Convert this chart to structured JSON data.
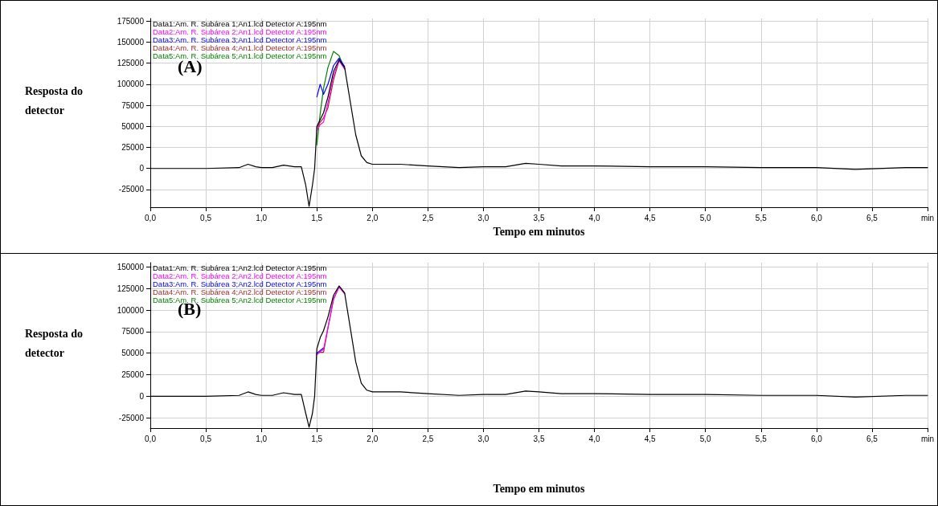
{
  "chart_data": [
    {
      "type": "line",
      "title": "(A)",
      "xlabel": "Tempo em minutos",
      "ylabel": "Resposta do detector",
      "legend": "top left",
      "grid": true,
      "marker": "none",
      "line_style": "solid",
      "x": [
        0,
        0.5,
        0.8,
        0.88,
        0.95,
        1.0,
        1.1,
        1.2,
        1.3,
        1.36,
        1.4,
        1.43,
        1.46,
        1.48,
        1.5,
        1.53,
        1.56,
        1.6,
        1.65,
        1.7,
        1.75,
        1.8,
        1.85,
        1.9,
        1.95,
        2.0,
        2.25,
        2.5,
        2.78,
        3.0,
        3.2,
        3.38,
        3.5,
        3.7,
        4.0,
        4.5,
        5.0,
        5.5,
        6.0,
        6.35,
        6.8,
        7.0
      ],
      "xlim": [
        0,
        7
      ],
      "xticks": [
        {
          "value": 0,
          "label": "0,0"
        },
        {
          "value": 0.5,
          "label": "0,5"
        },
        {
          "value": 1,
          "label": "1,0"
        },
        {
          "value": 1.5,
          "label": "1,5"
        },
        {
          "value": 2,
          "label": "2,0"
        },
        {
          "value": 2.5,
          "label": "2,5"
        },
        {
          "value": 3,
          "label": "3,0"
        },
        {
          "value": 3.5,
          "label": "3,5"
        },
        {
          "value": 4,
          "label": "4,0"
        },
        {
          "value": 4.5,
          "label": "4,5"
        },
        {
          "value": 5,
          "label": "5,0"
        },
        {
          "value": 5.5,
          "label": "5,5"
        },
        {
          "value": 6,
          "label": "6,0"
        },
        {
          "value": 6.5,
          "label": "6,5"
        },
        {
          "value": 7,
          "label": "min"
        }
      ],
      "ylim": [
        -46000,
        178000
      ],
      "yticks": [
        -25000,
        0,
        25000,
        50000,
        75000,
        100000,
        125000,
        150000,
        175000
      ],
      "series": [
        {
          "name": "Data1:Am. R. Subárea 1;An1.lcd Detector A:195nm",
          "color": "#000000",
          "values": [
            0,
            0,
            1000,
            5000,
            2000,
            1000,
            1000,
            4000,
            2000,
            2000,
            -20000,
            -45000,
            -20000,
            0,
            50000,
            58000,
            66000,
            85000,
            115000,
            129000,
            120000,
            80000,
            40000,
            15000,
            7000,
            5000,
            5000,
            3000,
            1000,
            2000,
            2000,
            6000,
            5000,
            3000,
            3000,
            2000,
            2000,
            1000,
            1000,
            -1000,
            1000,
            1000
          ]
        },
        {
          "name": "Data2:Am. R. Subárea 2;An1.lcd Detector A:195nm",
          "color": "#ff00ff",
          "values": [
            null,
            null,
            null,
            null,
            null,
            null,
            null,
            null,
            null,
            null,
            null,
            null,
            null,
            null,
            45000,
            52000,
            55000,
            78000,
            110000,
            128000,
            118000,
            null,
            null,
            null,
            null,
            null,
            null,
            null,
            null,
            null,
            null,
            null,
            null,
            null,
            null,
            null,
            null,
            null,
            null,
            null,
            null,
            null
          ]
        },
        {
          "name": "Data3:Am. R. Subárea 3;An1.lcd Detector A:195nm",
          "color": "#0000ff",
          "values": [
            null,
            null,
            null,
            null,
            null,
            null,
            null,
            null,
            null,
            null,
            null,
            null,
            null,
            null,
            85000,
            100000,
            88000,
            100000,
            122000,
            131000,
            121000,
            null,
            null,
            null,
            null,
            null,
            null,
            null,
            null,
            null,
            null,
            null,
            null,
            null,
            null,
            null,
            null,
            null,
            null,
            null,
            null,
            null
          ]
        },
        {
          "name": "Data4:Am. R. Subárea 4;An1.lcd Detector A:195nm",
          "color": "#a52a2a",
          "values": [
            null,
            null,
            null,
            null,
            null,
            null,
            null,
            null,
            null,
            null,
            null,
            null,
            null,
            null,
            48000,
            55000,
            60000,
            72000,
            105000,
            128000,
            119000,
            null,
            null,
            null,
            null,
            null,
            null,
            null,
            null,
            null,
            null,
            null,
            null,
            null,
            null,
            null,
            null,
            null,
            null,
            null,
            null,
            null
          ]
        },
        {
          "name": "Data5:Am. R. Subárea 5;An1.lcd Detector A:195nm",
          "color": "#008000",
          "values": [
            null,
            null,
            null,
            null,
            null,
            null,
            null,
            null,
            null,
            null,
            null,
            null,
            null,
            null,
            28000,
            65000,
            95000,
            120000,
            139000,
            134000,
            118000,
            null,
            null,
            null,
            null,
            null,
            null,
            null,
            null,
            null,
            null,
            null,
            null,
            null,
            null,
            null,
            null,
            null,
            null,
            null,
            null,
            null
          ]
        }
      ]
    },
    {
      "type": "line",
      "title": "(B)",
      "xlabel": "Tempo em minutos",
      "ylabel": "Resposta do detector",
      "legend": "top left",
      "grid": true,
      "marker": "none",
      "line_style": "solid",
      "x": [
        0,
        0.5,
        0.8,
        0.88,
        0.95,
        1.0,
        1.1,
        1.2,
        1.3,
        1.36,
        1.4,
        1.43,
        1.46,
        1.48,
        1.5,
        1.53,
        1.56,
        1.6,
        1.65,
        1.7,
        1.75,
        1.8,
        1.85,
        1.9,
        1.95,
        2.0,
        2.25,
        2.5,
        2.78,
        3.0,
        3.2,
        3.38,
        3.5,
        3.7,
        4.0,
        4.5,
        5.0,
        5.5,
        6.0,
        6.35,
        6.8,
        7.0
      ],
      "xlim": [
        0,
        7
      ],
      "xticks": [
        {
          "value": 0,
          "label": "0,0"
        },
        {
          "value": 0.5,
          "label": "0,5"
        },
        {
          "value": 1,
          "label": "1,0"
        },
        {
          "value": 1.5,
          "label": "1,5"
        },
        {
          "value": 2,
          "label": "2,0"
        },
        {
          "value": 2.5,
          "label": "2,5"
        },
        {
          "value": 3,
          "label": "3,0"
        },
        {
          "value": 3.5,
          "label": "3,5"
        },
        {
          "value": 4,
          "label": "4,0"
        },
        {
          "value": 4.5,
          "label": "4,5"
        },
        {
          "value": 5,
          "label": "5,0"
        },
        {
          "value": 5.5,
          "label": "5,5"
        },
        {
          "value": 6,
          "label": "6,0"
        },
        {
          "value": 6.5,
          "label": "6,5"
        },
        {
          "value": 7,
          "label": "min"
        }
      ],
      "ylim": [
        -37000,
        155000
      ],
      "yticks": [
        -25000,
        0,
        25000,
        50000,
        75000,
        100000,
        125000,
        150000
      ],
      "series": [
        {
          "name": "Data1:Am. R. Subárea 1;An2.lcd Detector A:195nm",
          "color": "#000000",
          "values": [
            0,
            0,
            1000,
            5000,
            2000,
            1000,
            1000,
            4000,
            2000,
            2000,
            -20000,
            -36000,
            -20000,
            0,
            55000,
            68000,
            76000,
            92000,
            117000,
            128000,
            120000,
            80000,
            40000,
            15000,
            7000,
            5000,
            5000,
            3000,
            1000,
            2000,
            2000,
            6000,
            5000,
            3000,
            3000,
            2000,
            2000,
            1000,
            1000,
            -1000,
            1000,
            1000
          ]
        },
        {
          "name": "Data2:Am. R. Subárea 2;An2.lcd Detector A:195nm",
          "color": "#ff00ff",
          "values": [
            null,
            null,
            null,
            null,
            null,
            null,
            null,
            null,
            null,
            null,
            null,
            null,
            null,
            null,
            48000,
            52000,
            54000,
            80000,
            113000,
            127000,
            119000,
            null,
            null,
            null,
            null,
            null,
            null,
            null,
            null,
            null,
            null,
            null,
            null,
            null,
            null,
            null,
            null,
            null,
            null,
            null,
            null,
            null
          ]
        },
        {
          "name": "Data3:Am. R. Subárea 3;An2.lcd Detector A:195nm",
          "color": "#0000ff",
          "values": [
            null,
            null,
            null,
            null,
            null,
            null,
            null,
            null,
            null,
            null,
            null,
            null,
            null,
            null,
            50000,
            53000,
            56000,
            null,
            null,
            null,
            null,
            null,
            null,
            null,
            null,
            null,
            null,
            null,
            null,
            null,
            null,
            null,
            null,
            null,
            null,
            null,
            null,
            null,
            null,
            null,
            null,
            null
          ]
        },
        {
          "name": "Data4:Am. R. Subárea 4;An2.lcd Detector A:195nm",
          "color": "#a52a2a",
          "values": [
            null,
            null,
            null,
            null,
            null,
            null,
            null,
            null,
            null,
            null,
            null,
            null,
            null,
            null,
            49000,
            51000,
            51000,
            79000,
            112000,
            127000,
            119000,
            null,
            null,
            null,
            null,
            null,
            null,
            null,
            null,
            null,
            null,
            null,
            null,
            null,
            null,
            null,
            null,
            null,
            null,
            null,
            null,
            null
          ]
        },
        {
          "name": "Data5:Am. R. Subárea 5;An2.lcd Detector A:195nm",
          "color": "#008000",
          "values": [
            null,
            null,
            null,
            null,
            null,
            null,
            null,
            null,
            null,
            null,
            null,
            null,
            null,
            null,
            null,
            null,
            null,
            null,
            null,
            null,
            null,
            null,
            null,
            null,
            null,
            null,
            null,
            null,
            null,
            null,
            null,
            null,
            null,
            null,
            null,
            null,
            null,
            null,
            null,
            null,
            null,
            null
          ]
        }
      ]
    }
  ]
}
